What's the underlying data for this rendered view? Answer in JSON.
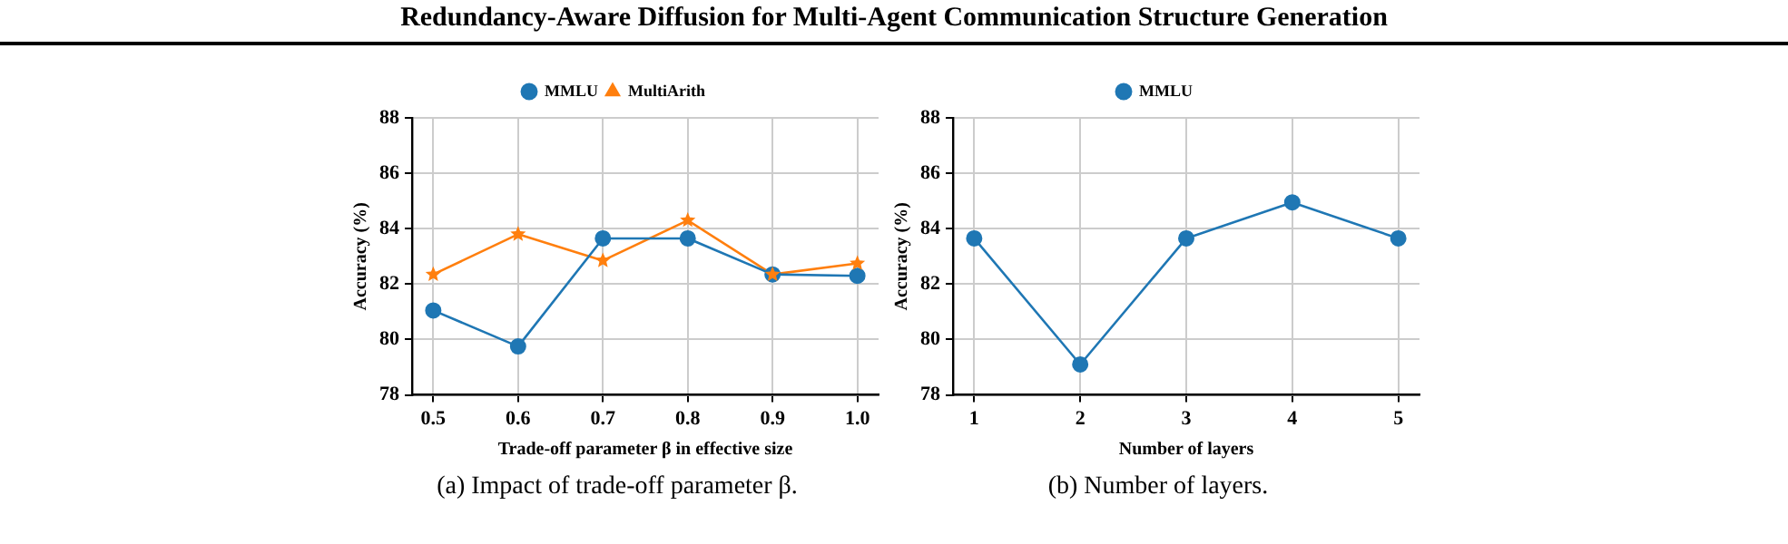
{
  "chart_data": [
    {
      "type": "line",
      "title": "(a) Impact of trade-off parameter β.",
      "annotations": [
        "Redundancy-Aware Diffusion for Multi-Agent Communication Structure Generation"
      ],
      "xlabel": "Trade-off parameter β in effective size",
      "ylabel": "Accuracy (%)",
      "x": [
        0.5,
        0.6,
        0.7,
        0.8,
        0.9,
        1.0
      ],
      "series": [
        {
          "name": "MMLU",
          "color": "#1f77b4",
          "marker": "circle",
          "values": [
            81.05,
            79.75,
            83.65,
            83.65,
            82.35,
            82.3
          ]
        },
        {
          "name": "MultiArith",
          "color": "#ff7f0e",
          "marker": "star",
          "values": [
            82.35,
            83.8,
            82.85,
            84.3,
            82.35,
            82.75
          ]
        }
      ],
      "xlim": [
        0.475,
        1.025
      ],
      "xticks": [
        0.5,
        0.6,
        0.7,
        0.8,
        0.9,
        {
          "value": 1.0,
          "label": "1.0"
        }
      ],
      "ylim": [
        78,
        88
      ],
      "yticks": [
        78,
        80,
        82,
        84,
        86,
        88
      ],
      "grid": true,
      "legend": "top",
      "line_style": "solid"
    },
    {
      "type": "line",
      "title": "(b) Number of layers.",
      "xlabel": "Number of layers",
      "ylabel": "Accuracy (%)",
      "x": [
        1,
        2,
        3,
        4,
        5
      ],
      "series": [
        {
          "name": "MMLU",
          "color": "#1f77b4",
          "marker": "circle",
          "values": [
            83.65,
            79.1,
            83.65,
            84.95,
            83.65
          ]
        }
      ],
      "xlim": [
        0.8,
        5.2
      ],
      "xticks": [
        1,
        2,
        3,
        4,
        5
      ],
      "ylim": [
        78,
        88
      ],
      "yticks": [
        78,
        80,
        82,
        84,
        86,
        88
      ],
      "grid": true,
      "legend": "top",
      "line_style": "solid"
    }
  ]
}
